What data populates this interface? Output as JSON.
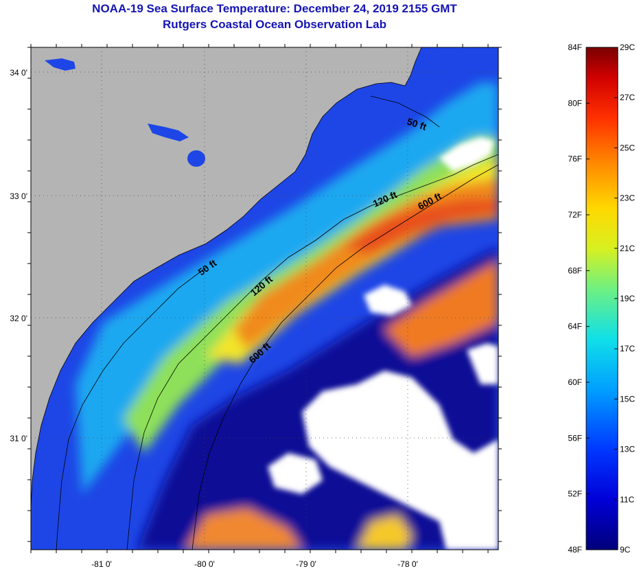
{
  "header": {
    "title": "NOAA-19 Sea Surface Temperature:  December 24, 2019 2155 GMT",
    "subtitle": "Rutgers Coastal Ocean Observation Lab"
  },
  "map": {
    "lat_labels": [
      "34 0'",
      "33 0'",
      "32 0'",
      "31 0'"
    ],
    "lon_labels": [
      "-81 0'",
      "-80 0'",
      "-79 0'",
      "-78 0'"
    ],
    "contours": [
      {
        "id": "50-ft-north",
        "label": "50 ft"
      },
      {
        "id": "120-ft-north",
        "label": "120 ft"
      },
      {
        "id": "600-ft-north",
        "label": "600 ft"
      },
      {
        "id": "50-ft-south",
        "label": "50 ft"
      },
      {
        "id": "120-ft-south",
        "label": "120 ft"
      },
      {
        "id": "600-ft-south",
        "label": "600 ft"
      }
    ],
    "colors": {
      "land": "#b4b4b4",
      "cloud": "#ffffff",
      "coast_line": "#000000"
    }
  },
  "colorbar": {
    "fahrenheit": [
      "84F",
      "80F",
      "76F",
      "72F",
      "68F",
      "64F",
      "60F",
      "56F",
      "52F",
      "48F"
    ],
    "celsius": [
      "29C",
      "27C",
      "25C",
      "23C",
      "21C",
      "19C",
      "17C",
      "15C",
      "13C",
      "11C",
      "9C"
    ]
  }
}
